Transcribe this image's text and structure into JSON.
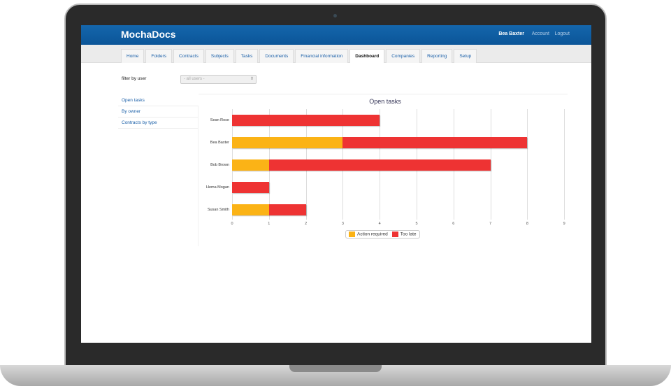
{
  "app": {
    "logo": "MochaDocs",
    "user": "Bea Baxter",
    "account": "Account",
    "logout": "Logout"
  },
  "tabs": [
    "Home",
    "Folders",
    "Contracts",
    "Subjects",
    "Tasks",
    "Documents",
    "Financial information",
    "Dashboard",
    "Companies",
    "Reporting",
    "Setup"
  ],
  "active_tab": "Dashboard",
  "filter": {
    "label": "filter by user",
    "value": "- all users -"
  },
  "sidebar": [
    "Open tasks",
    "By owner",
    "Contracts by type"
  ],
  "colors": {
    "action": "#fbb316",
    "late": "#ee3333",
    "brand": "#0d5a9e"
  },
  "chart_data": {
    "type": "bar",
    "orientation": "horizontal",
    "stacked": true,
    "title": "Open tasks",
    "categories": [
      "Sean Rose",
      "Bea Baxter",
      "Bob Brown",
      "Hema Mogan",
      "Susan Smith"
    ],
    "series": [
      {
        "name": "Action required",
        "values": [
          0,
          3,
          1,
          0,
          1
        ]
      },
      {
        "name": "Too late",
        "values": [
          4,
          5,
          6,
          1,
          1
        ]
      }
    ],
    "xlim": [
      0,
      9
    ],
    "xticks": [
      "0",
      "1",
      "2",
      "3",
      "4",
      "5",
      "6",
      "7",
      "8",
      "9"
    ],
    "legend": "bottom-center",
    "grid": true
  }
}
